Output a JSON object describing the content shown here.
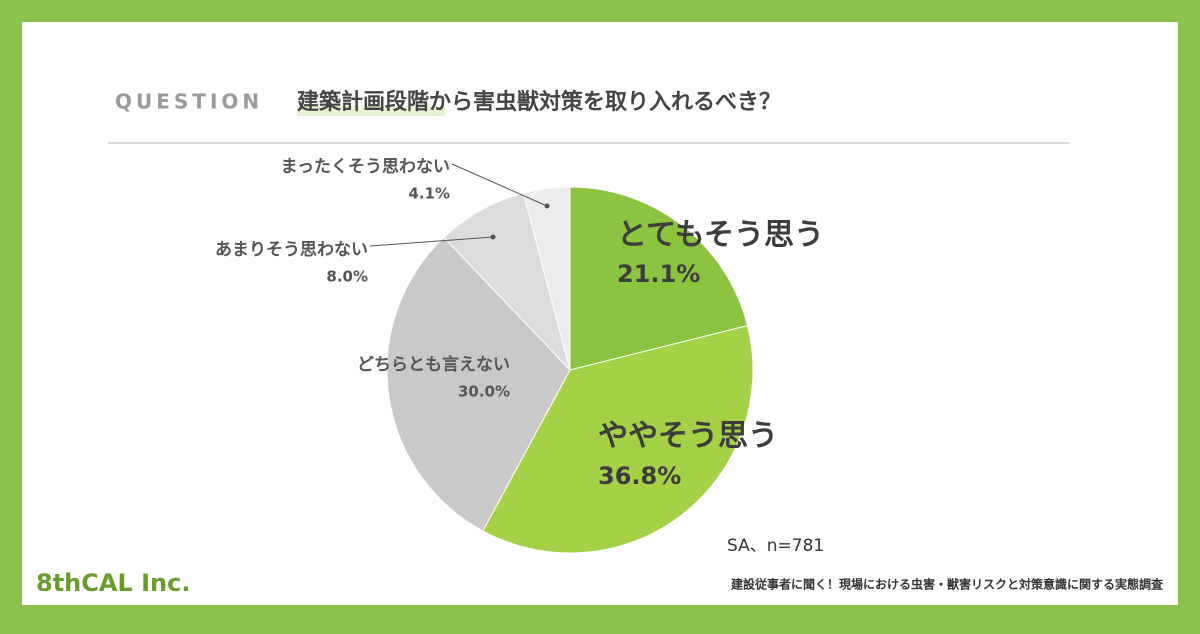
{
  "chart_data": {
    "type": "pie",
    "kicker": "QUESTION",
    "title": "建築計画段階から害虫獣対策を取り入れるべき？",
    "categories": [
      "とてもそう思う",
      "ややそう思う",
      "どちらとも言えない",
      "あまりそう思わない",
      "まったくそう思わない"
    ],
    "values": [
      21.1,
      36.8,
      30.0,
      8.0,
      4.1
    ],
    "value_labels": [
      "21.1%",
      "36.8%",
      "30.0%",
      "8.0%",
      "4.1%"
    ],
    "colors": [
      "#8cc43f",
      "#a3d247",
      "#c9c9c9",
      "#dcdcdc",
      "#ececec"
    ],
    "note": "SA、n=781"
  },
  "brand": "8thCAL Inc.",
  "footer": "建設従事者に聞く！現場における虫害・獣害リスクと対策意識に関する実態調査"
}
